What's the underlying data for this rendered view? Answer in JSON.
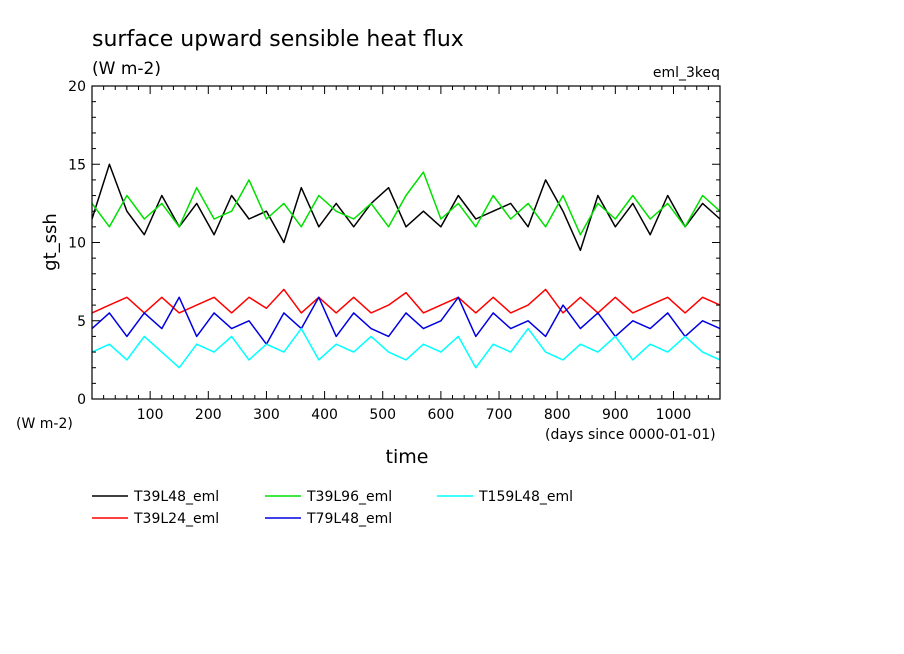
{
  "chart_data": {
    "type": "line",
    "title": "surface upward sensible heat flux",
    "subtitle": "(W m-2)",
    "run_label": "eml_3keq",
    "ylabel": "gt_ssh",
    "y_unit_label": "(W m-2)",
    "xlabel": "time",
    "x_unit_label": "(days since 0000-01-01)",
    "xlim": [
      0,
      1080
    ],
    "ylim": [
      0,
      20
    ],
    "x_ticks": [
      100,
      200,
      300,
      400,
      500,
      600,
      700,
      800,
      900,
      1000
    ],
    "y_ticks": [
      0,
      5,
      10,
      15,
      20
    ],
    "grid": false,
    "legend_position": "bottom",
    "series": [
      {
        "name": "T39L48_eml",
        "color": "#000000",
        "x": [
          0,
          30,
          60,
          90,
          120,
          150,
          180,
          210,
          240,
          270,
          300,
          330,
          360,
          390,
          420,
          450,
          480,
          510,
          540,
          570,
          600,
          630,
          660,
          690,
          720,
          750,
          780,
          810,
          840,
          870,
          900,
          930,
          960,
          990,
          1020,
          1050,
          1080
        ],
        "values": [
          11.5,
          15.0,
          12.0,
          10.5,
          13.0,
          11.0,
          12.5,
          10.5,
          13.0,
          11.5,
          12.0,
          10.0,
          13.5,
          11.0,
          12.5,
          11.0,
          12.5,
          13.5,
          11.0,
          12.0,
          11.0,
          13.0,
          11.5,
          12.0,
          12.5,
          11.0,
          14.0,
          12.0,
          9.5,
          13.0,
          11.0,
          12.5,
          10.5,
          13.0,
          11.0,
          12.5,
          11.5
        ]
      },
      {
        "name": "T39L96_eml",
        "color": "#00e000",
        "x": [
          0,
          30,
          60,
          90,
          120,
          150,
          180,
          210,
          240,
          270,
          300,
          330,
          360,
          390,
          420,
          450,
          480,
          510,
          540,
          570,
          600,
          630,
          660,
          690,
          720,
          750,
          780,
          810,
          840,
          870,
          900,
          930,
          960,
          990,
          1020,
          1050,
          1080
        ],
        "values": [
          12.5,
          11.0,
          13.0,
          11.5,
          12.5,
          11.0,
          13.5,
          11.5,
          12.0,
          14.0,
          11.5,
          12.5,
          11.0,
          13.0,
          12.0,
          11.5,
          12.5,
          11.0,
          13.0,
          14.5,
          11.5,
          12.5,
          11.0,
          13.0,
          11.5,
          12.5,
          11.0,
          13.0,
          10.5,
          12.5,
          11.5,
          13.0,
          11.5,
          12.5,
          11.0,
          13.0,
          12.0
        ]
      },
      {
        "name": "T39L24_eml",
        "color": "#ff0000",
        "x": [
          0,
          30,
          60,
          90,
          120,
          150,
          180,
          210,
          240,
          270,
          300,
          330,
          360,
          390,
          420,
          450,
          480,
          510,
          540,
          570,
          600,
          630,
          660,
          690,
          720,
          750,
          780,
          810,
          840,
          870,
          900,
          930,
          960,
          990,
          1020,
          1050,
          1080
        ],
        "values": [
          5.5,
          6.0,
          6.5,
          5.5,
          6.5,
          5.5,
          6.0,
          6.5,
          5.5,
          6.5,
          5.8,
          7.0,
          5.5,
          6.5,
          5.5,
          6.5,
          5.5,
          6.0,
          6.8,
          5.5,
          6.0,
          6.5,
          5.5,
          6.5,
          5.5,
          6.0,
          7.0,
          5.5,
          6.5,
          5.5,
          6.5,
          5.5,
          6.0,
          6.5,
          5.5,
          6.5,
          6.0
        ]
      },
      {
        "name": "T79L48_eml",
        "color": "#0000e0",
        "x": [
          0,
          30,
          60,
          90,
          120,
          150,
          180,
          210,
          240,
          270,
          300,
          330,
          360,
          390,
          420,
          450,
          480,
          510,
          540,
          570,
          600,
          630,
          660,
          690,
          720,
          750,
          780,
          810,
          840,
          870,
          900,
          930,
          960,
          990,
          1020,
          1050,
          1080
        ],
        "values": [
          4.5,
          5.5,
          4.0,
          5.5,
          4.5,
          6.5,
          4.0,
          5.5,
          4.5,
          5.0,
          3.5,
          5.5,
          4.5,
          6.5,
          4.0,
          5.5,
          4.5,
          4.0,
          5.5,
          4.5,
          5.0,
          6.5,
          4.0,
          5.5,
          4.5,
          5.0,
          4.0,
          6.0,
          4.5,
          5.5,
          4.0,
          5.0,
          4.5,
          5.5,
          4.0,
          5.0,
          4.5
        ]
      },
      {
        "name": "T159L48_eml",
        "color": "#00ffff",
        "x": [
          0,
          30,
          60,
          90,
          120,
          150,
          180,
          210,
          240,
          270,
          300,
          330,
          360,
          390,
          420,
          450,
          480,
          510,
          540,
          570,
          600,
          630,
          660,
          690,
          720,
          750,
          780,
          810,
          840,
          870,
          900,
          930,
          960,
          990,
          1020,
          1050,
          1080
        ],
        "values": [
          3.0,
          3.5,
          2.5,
          4.0,
          3.0,
          2.0,
          3.5,
          3.0,
          4.0,
          2.5,
          3.5,
          3.0,
          4.5,
          2.5,
          3.5,
          3.0,
          4.0,
          3.0,
          2.5,
          3.5,
          3.0,
          4.0,
          2.0,
          3.5,
          3.0,
          4.5,
          3.0,
          2.5,
          3.5,
          3.0,
          4.0,
          2.5,
          3.5,
          3.0,
          4.0,
          3.0,
          2.5
        ]
      }
    ]
  }
}
